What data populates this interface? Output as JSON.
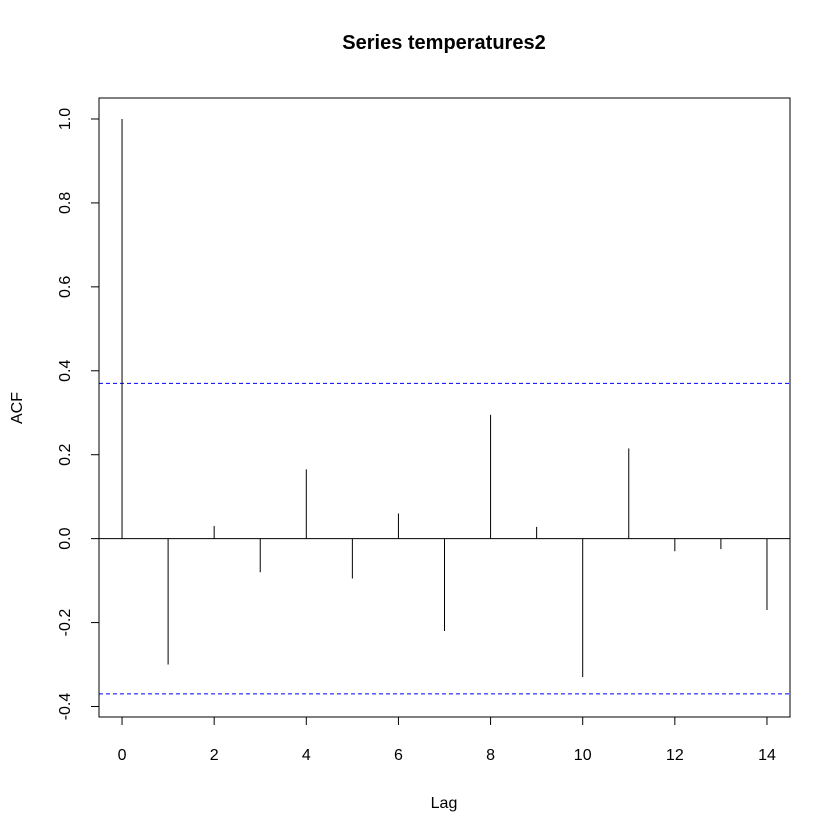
{
  "chart_data": {
    "type": "bar",
    "subtype": "acf",
    "title": "Series  temperatures2",
    "xlabel": "Lag",
    "ylabel": "ACF",
    "xlim": [
      -0.5,
      14.5
    ],
    "ylim": [
      -0.425,
      1.05
    ],
    "x_ticks": [
      0,
      2,
      4,
      6,
      8,
      10,
      12,
      14
    ],
    "y_ticks": [
      -0.4,
      -0.2,
      0.0,
      0.2,
      0.4,
      0.6,
      0.8,
      1.0
    ],
    "y_tick_labels": [
      "-0.4",
      "-0.2",
      "0.0",
      "0.2",
      "0.4",
      "0.6",
      "0.8",
      "1.0"
    ],
    "lags": [
      0,
      1,
      2,
      3,
      4,
      5,
      6,
      7,
      8,
      9,
      10,
      11,
      12,
      13,
      14
    ],
    "acf": [
      1.0,
      -0.3,
      0.03,
      -0.08,
      0.165,
      -0.095,
      0.06,
      -0.22,
      0.295,
      0.028,
      -0.33,
      0.215,
      -0.03,
      -0.025,
      -0.17
    ],
    "confidence_bound": 0.37,
    "zero_line": true,
    "colors": {
      "bars": "#000000",
      "confidence": "#0000ff",
      "axes": "#000000"
    }
  }
}
